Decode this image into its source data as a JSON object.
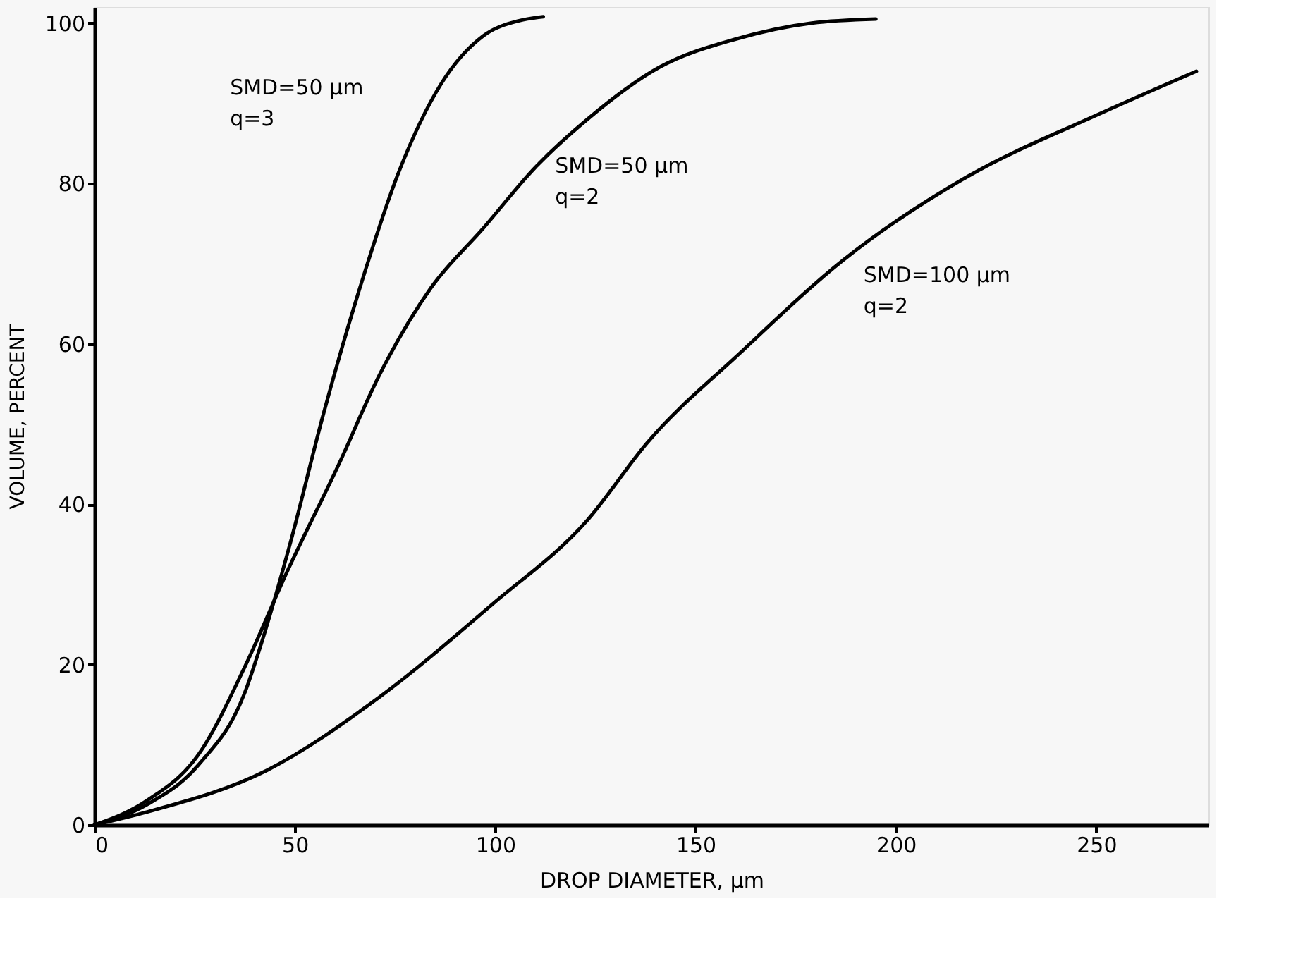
{
  "chart_data": {
    "type": "line",
    "xlabel": "DROP DIAMETER, μm",
    "ylabel": "VOLUME, PERCENT",
    "xlim": [
      0,
      278
    ],
    "ylim": [
      0,
      102
    ],
    "xticks": [
      0,
      50,
      100,
      150,
      200,
      250
    ],
    "yticks": [
      0,
      20,
      40,
      60,
      80,
      100
    ],
    "grid": false,
    "marker": "none",
    "line_style": "solid",
    "series": [
      {
        "color": "#000000",
        "x": [
          0,
          13,
          26,
          37.6,
          41.5,
          49,
          57,
          66,
          76,
          86.6,
          97,
          106,
          112
        ],
        "values": [
          0,
          2.5,
          7.5,
          16.6,
          22.4,
          35.4,
          51,
          66.6,
          81.5,
          92.5,
          98.4,
          100.3,
          100.8
        ]
      },
      {
        "color": "#000000",
        "x": [
          0,
          13,
          26,
          37.6,
          48,
          61,
          71,
          84,
          97,
          110,
          123,
          141,
          160,
          179,
          195
        ],
        "values": [
          0,
          3,
          8.8,
          19.8,
          31.5,
          45,
          56,
          67,
          74.4,
          82,
          88,
          94.5,
          98,
          100,
          100.5
        ]
      },
      {
        "color": "#000000",
        "x": [
          0,
          13,
          43,
          71,
          99.5,
          123,
          138,
          161,
          187,
          218,
          250,
          275
        ],
        "values": [
          0,
          1.6,
          6.8,
          15.9,
          27.6,
          38,
          47.7,
          58.8,
          70.5,
          80.9,
          88.5,
          94
        ]
      }
    ],
    "annotations": [
      "SMD=50 μm\nq=3",
      "SMD=50 μm\nq=2",
      "SMD=100 μm\nq=2"
    ]
  }
}
